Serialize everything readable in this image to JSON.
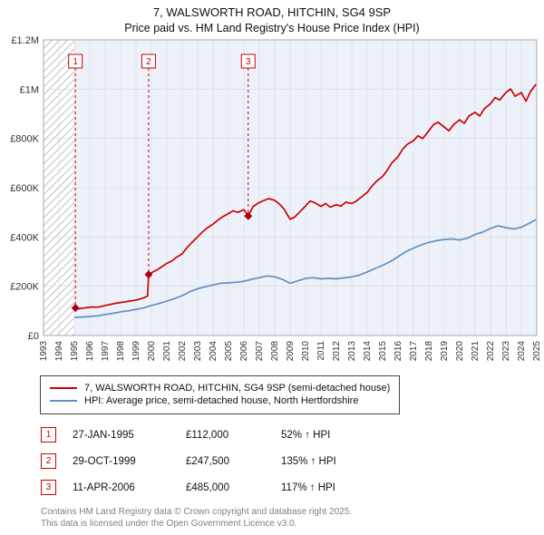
{
  "title": "7, WALSWORTH ROAD, HITCHIN, SG4 9SP",
  "subtitle": "Price paid vs. HM Land Registry's House Price Index (HPI)",
  "chart_data": {
    "type": "line",
    "x_range": [
      1993,
      2025
    ],
    "y_range": [
      0,
      1200000
    ],
    "x_ticks": [
      1993,
      1994,
      1995,
      1996,
      1997,
      1998,
      1999,
      2000,
      2001,
      2002,
      2003,
      2004,
      2005,
      2006,
      2007,
      2008,
      2009,
      2010,
      2011,
      2012,
      2013,
      2014,
      2015,
      2016,
      2017,
      2018,
      2019,
      2020,
      2021,
      2022,
      2023,
      2024,
      2025
    ],
    "y_tick_values": [
      0,
      200000,
      400000,
      600000,
      800000,
      1000000,
      1200000
    ],
    "y_tick_labels": [
      "£0",
      "£200K",
      "£400K",
      "£600K",
      "£800K",
      "£1M",
      "£1.2M"
    ],
    "grid_color": "#d9d9d9",
    "plot_bg": "#edf2fa",
    "hatch_region": {
      "from": 1993,
      "to": 1995
    },
    "series": [
      {
        "name": "7, WALSWORTH ROAD, HITCHIN, SG4 9SP (semi-detached house)",
        "color": "#cc0000",
        "x": [
          1995.05,
          1995.3,
          1995.6,
          1995.9,
          1996.2,
          1996.5,
          1996.8,
          1997.1,
          1997.4,
          1997.7,
          1998.0,
          1998.3,
          1998.6,
          1998.9,
          1999.2,
          1999.5,
          1999.75,
          1999.82,
          2000.1,
          2000.4,
          2000.7,
          2001.0,
          2001.3,
          2001.6,
          2002.0,
          2002.3,
          2002.6,
          2003.0,
          2003.3,
          2003.6,
          2004.0,
          2004.3,
          2004.6,
          2005.0,
          2005.3,
          2005.6,
          2006.0,
          2006.28,
          2006.6,
          2007.0,
          2007.3,
          2007.6,
          2008.0,
          2008.3,
          2008.6,
          2009.0,
          2009.3,
          2009.6,
          2010.0,
          2010.3,
          2010.6,
          2011.0,
          2011.3,
          2011.6,
          2012.0,
          2012.3,
          2012.6,
          2013.0,
          2013.3,
          2013.6,
          2014.0,
          2014.3,
          2014.6,
          2015.0,
          2015.3,
          2015.6,
          2016.0,
          2016.3,
          2016.6,
          2017.0,
          2017.3,
          2017.6,
          2018.0,
          2018.3,
          2018.6,
          2019.0,
          2019.3,
          2019.6,
          2020.0,
          2020.3,
          2020.6,
          2021.0,
          2021.3,
          2021.6,
          2022.0,
          2022.3,
          2022.6,
          2023.0,
          2023.3,
          2023.6,
          2024.0,
          2024.3,
          2024.6,
          2024.95
        ],
        "values": [
          112000,
          109000,
          111000,
          114000,
          116000,
          115000,
          119000,
          123000,
          127000,
          131000,
          134000,
          137000,
          140000,
          143000,
          147000,
          153000,
          160000,
          247500,
          258000,
          268000,
          280000,
          293000,
          302000,
          316000,
          332000,
          356000,
          376000,
          400000,
          420000,
          436000,
          452000,
          468000,
          481000,
          495000,
          506000,
          500000,
          511000,
          485000,
          524000,
          540000,
          548000,
          556000,
          549000,
          534000,
          514000,
          472000,
          481000,
          500000,
          526000,
          546000,
          539000,
          524000,
          536000,
          521000,
          531000,
          525000,
          541000,
          536000,
          546000,
          561000,
          581000,
          606000,
          626000,
          646000,
          671000,
          701000,
          726000,
          756000,
          776000,
          791000,
          811000,
          799000,
          831000,
          856000,
          866000,
          846000,
          831000,
          856000,
          876000,
          861000,
          891000,
          906000,
          891000,
          921000,
          941000,
          966000,
          956000,
          986000,
          1001000,
          971000,
          986000,
          951000,
          991000,
          1020000
        ]
      },
      {
        "name": "HPI: Average price, semi-detached house, North Hertfordshire",
        "color": "#5f90c0",
        "x": [
          1995.0,
          1995.5,
          1996.0,
          1996.5,
          1997.0,
          1997.5,
          1998.0,
          1998.5,
          1999.0,
          1999.5,
          2000.0,
          2000.5,
          2001.0,
          2001.5,
          2002.0,
          2002.5,
          2003.0,
          2003.5,
          2004.0,
          2004.5,
          2005.0,
          2005.5,
          2006.0,
          2006.5,
          2007.0,
          2007.5,
          2008.0,
          2008.5,
          2009.0,
          2009.5,
          2010.0,
          2010.5,
          2011.0,
          2011.5,
          2012.0,
          2012.5,
          2013.0,
          2013.5,
          2014.0,
          2014.5,
          2015.0,
          2015.5,
          2016.0,
          2016.5,
          2017.0,
          2017.5,
          2018.0,
          2018.5,
          2019.0,
          2019.5,
          2020.0,
          2020.5,
          2021.0,
          2021.5,
          2022.0,
          2022.5,
          2023.0,
          2023.5,
          2024.0,
          2024.5,
          2024.95
        ],
        "values": [
          74000,
          75000,
          77000,
          80000,
          85000,
          90000,
          96000,
          100000,
          106000,
          112000,
          122000,
          130000,
          140000,
          150000,
          162000,
          178000,
          190000,
          198000,
          205000,
          212000,
          214000,
          216000,
          220000,
          228000,
          235000,
          242000,
          238000,
          228000,
          212000,
          222000,
          232000,
          235000,
          230000,
          232000,
          230000,
          234000,
          238000,
          245000,
          258000,
          272000,
          285000,
          300000,
          320000,
          340000,
          355000,
          368000,
          378000,
          385000,
          390000,
          392000,
          388000,
          395000,
          410000,
          420000,
          435000,
          445000,
          438000,
          432000,
          440000,
          455000,
          470000
        ]
      }
    ],
    "markers": [
      {
        "label": "1",
        "x": 1995.07,
        "value": 112000
      },
      {
        "label": "2",
        "x": 1999.82,
        "value": 247500
      },
      {
        "label": "3",
        "x": 2006.28,
        "value": 485000
      }
    ],
    "marker_color": "#aa0011"
  },
  "sales": [
    {
      "num": "1",
      "date": "27-JAN-1995",
      "price": "£112,000",
      "hpi": "52% ↑ HPI"
    },
    {
      "num": "2",
      "date": "29-OCT-1999",
      "price": "£247,500",
      "hpi": "135% ↑ HPI"
    },
    {
      "num": "3",
      "date": "11-APR-2006",
      "price": "£485,000",
      "hpi": "117% ↑ HPI"
    }
  ],
  "footer": {
    "line1": "Contains HM Land Registry data © Crown copyright and database right 2025.",
    "line2": "This data is licensed under the Open Government Licence v3.0."
  }
}
